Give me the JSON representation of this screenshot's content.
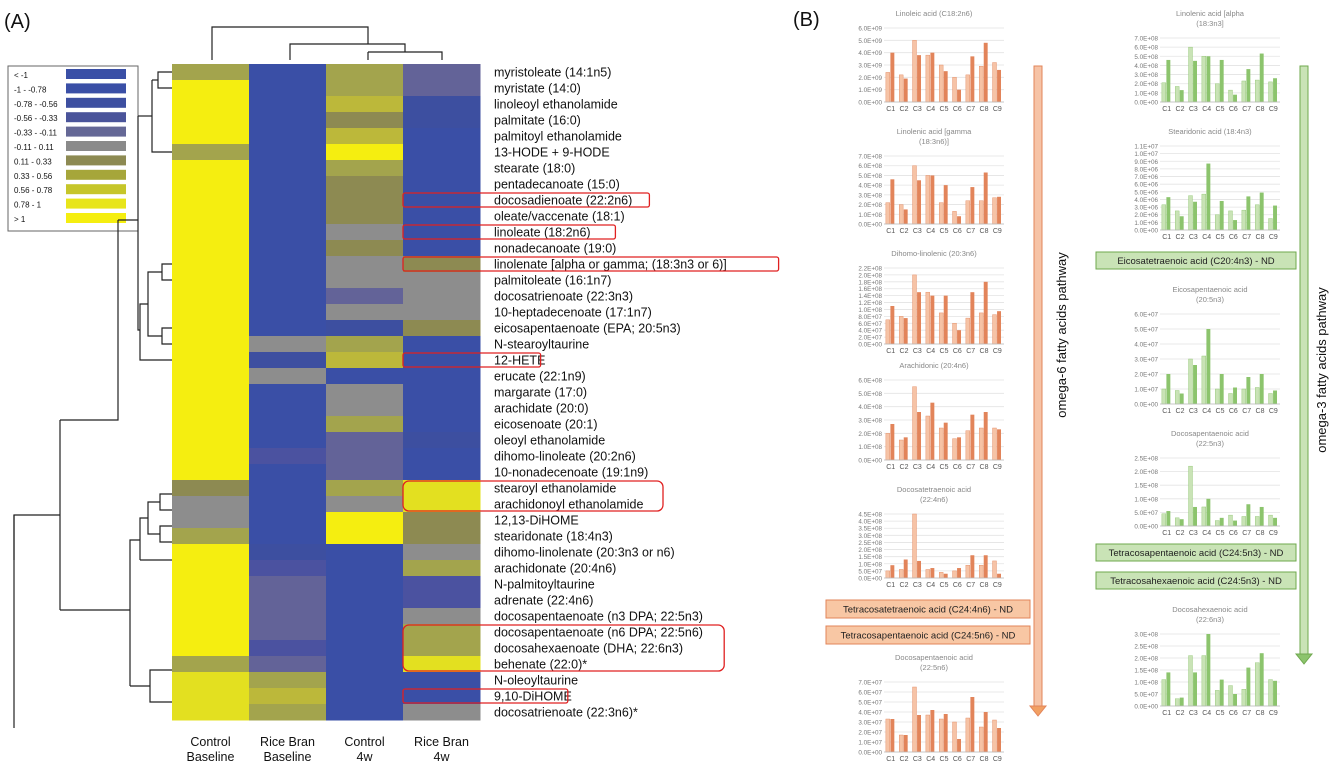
{
  "panel_labels": {
    "a": "(A)",
    "b": "(B)"
  },
  "legend": [
    {
      "label": "< -1",
      "color": "#3a4fa6"
    },
    {
      "label": "-1 - -0.78",
      "color": "#3a4fa6"
    },
    {
      "label": "-0.78 - -0.56",
      "color": "#3d4fa0"
    },
    {
      "label": "-0.56 - -0.33",
      "color": "#4a549a"
    },
    {
      "label": "-0.33 - -0.11",
      "color": "#656896"
    },
    {
      "label": "-0.11 - 0.11",
      "color": "#8a8a8a"
    },
    {
      "label": "0.11 - 0.33",
      "color": "#8d8a52"
    },
    {
      "label": "0.33 - 0.56",
      "color": "#a6a63a"
    },
    {
      "label": "0.56 - 0.78",
      "color": "#c6c62a"
    },
    {
      "label": "0.78 - 1",
      "color": "#e8e51a"
    },
    {
      "label": "> 1",
      "color": "#f5ee10"
    }
  ],
  "heatmap": {
    "columns": [
      "Control Baseline",
      "Rice Bran Baseline",
      "Control 4w",
      "Rice Bran 4w"
    ],
    "colors": {
      "Y": "#f5ee10",
      "y": "#e3e020",
      "O": "#bcb83a",
      "o": "#a3a44d",
      "G": "#8d8a52",
      "R": "#8d8d8d",
      "P": "#636398",
      "p": "#4b52a0",
      "B": "#3a4fa6",
      "b": "#3d4fa0"
    },
    "rows": [
      {
        "label": "myristoleate (14:1n5)",
        "cells": "oBoP"
      },
      {
        "label": "myristate (14:0)",
        "cells": "YBoP"
      },
      {
        "label": "linoleoyl ethanolamide",
        "cells": "YBOb"
      },
      {
        "label": "palmitate (16:0)",
        "cells": "YBGb"
      },
      {
        "label": "palmitoyl ethanolamide",
        "cells": "YBOB"
      },
      {
        "label": "13-HODE + 9-HODE",
        "cells": "oBYB"
      },
      {
        "label": "stearate (18:0)",
        "cells": "YBoB"
      },
      {
        "label": "pentadecanoate (15:0)",
        "cells": "YBGB"
      },
      {
        "label": "docosadienoate (22:2n6)",
        "cells": "YBGB"
      },
      {
        "label": "oleate/vaccenate (18:1)",
        "cells": "YBGB"
      },
      {
        "label": "linoleate (18:2n6)",
        "cells": "YBRB"
      },
      {
        "label": "nonadecanoate (19:0)",
        "cells": "YBGB"
      },
      {
        "label": "linolenate [alpha or gamma; (18:3n3 or 6)]",
        "cells": "YBRG"
      },
      {
        "label": "palmitoleate (16:1n7)",
        "cells": "YBRR"
      },
      {
        "label": "docosatrienoate (22:3n3)",
        "cells": "YBPR"
      },
      {
        "label": "10-heptadecenoate (17:1n7)",
        "cells": "YBRR"
      },
      {
        "label": "eicosapentaenoate (EPA; 20:5n3)",
        "cells": "YBbG"
      },
      {
        "label": "N-stearoyltaurine",
        "cells": "YRoB"
      },
      {
        "label": "12-HETE",
        "cells": "YbOB"
      },
      {
        "label": "erucate (22:1n9)",
        "cells": "YRBB"
      },
      {
        "label": "margarate (17:0)",
        "cells": "YBRB"
      },
      {
        "label": "arachidate (20:0)",
        "cells": "YBRB"
      },
      {
        "label": "eicosenoate (20:1)",
        "cells": "YBoB"
      },
      {
        "label": "oleoyl ethanolamide",
        "cells": "YBPb"
      },
      {
        "label": "dihomo-linoleate (20:2n6)",
        "cells": "YpPB"
      },
      {
        "label": "10-nonadecenoate (19:1n9)",
        "cells": "YBPB"
      },
      {
        "label": "stearoyl ethanolamide",
        "cells": "GBoy"
      },
      {
        "label": "arachidonoyl ethanolamide",
        "cells": "RBRy"
      },
      {
        "label": "12,13-DiHOME",
        "cells": "RBYG"
      },
      {
        "label": "stearidonate (18:4n3)",
        "cells": "oBYG"
      },
      {
        "label": "dihomo-linolenate (20:3n3 or n6)",
        "cells": "YbBR"
      },
      {
        "label": "arachidonate (20:4n6)",
        "cells": "YpBo"
      },
      {
        "label": "N-palmitoyltaurine",
        "cells": "YPBp"
      },
      {
        "label": "adrenate (22:4n6)",
        "cells": "YPBp"
      },
      {
        "label": "docosapentaenoate (n3 DPA; 22:5n3)",
        "cells": "YPBR"
      },
      {
        "label": "docosapentaenoate (n6 DPA; 22:5n6)",
        "cells": "YPBo"
      },
      {
        "label": "docosahexaenoate (DHA; 22:6n3)",
        "cells": "YpBo"
      },
      {
        "label": "behenate (22:0)*",
        "cells": "oPBy"
      },
      {
        "label": "N-oleoyltaurine",
        "cells": "yoBB"
      },
      {
        "label": "9,10-DiHOME",
        "cells": "yOBB"
      },
      {
        "label": "docosatrienoate (22:3n6)*",
        "cells": "yoBR"
      }
    ],
    "boxed": [
      [
        8
      ],
      [
        10
      ],
      [
        12
      ],
      [
        18
      ],
      [
        26,
        27
      ],
      [
        35,
        36,
        37
      ],
      [
        39
      ]
    ]
  },
  "chart_data": [
    {
      "type": "bar",
      "title": "Linoleic acid (C18:2n6)",
      "categories": [
        "C1",
        "C2",
        "C3",
        "C4",
        "C5",
        "C6",
        "C7",
        "C8",
        "C9"
      ],
      "yticks": [
        "0.0E+00",
        "1.0E+09",
        "2.0E+09",
        "3.0E+09",
        "4.0E+09",
        "5.0E+09",
        "6.0E+09"
      ],
      "ylim": [
        0,
        6000000000
      ],
      "series": [
        {
          "values": [
            2400000000,
            2200000000,
            5000000000,
            3800000000,
            3000000000,
            2000000000,
            2200000000,
            2900000000,
            3200000000
          ]
        },
        {
          "values": [
            4000000000,
            1900000000,
            3800000000,
            4000000000,
            2500000000,
            1000000000,
            3700000000,
            4800000000,
            2600000000
          ]
        }
      ]
    },
    {
      "type": "bar",
      "title": "Linolenic acid [gamma (18:3n6)]",
      "categories": [
        "C1",
        "C2",
        "C3",
        "C4",
        "C5",
        "C6",
        "C7",
        "C8",
        "C9"
      ],
      "yticks": [
        "0.0E+00",
        "1.0E+08",
        "2.0E+08",
        "3.0E+08",
        "4.0E+08",
        "5.0E+08",
        "6.0E+08",
        "7.0E+08"
      ],
      "ylim": [
        0,
        700000000
      ],
      "series": [
        {
          "values": [
            220000000,
            200000000,
            600000000,
            500000000,
            220000000,
            130000000,
            240000000,
            240000000,
            270000000
          ]
        },
        {
          "values": [
            460000000,
            150000000,
            450000000,
            500000000,
            400000000,
            80000000,
            380000000,
            530000000,
            280000000
          ]
        }
      ]
    },
    {
      "type": "bar",
      "title": "Dihomo-linolenic (20:3n6)",
      "categories": [
        "C1",
        "C2",
        "C3",
        "C4",
        "C5",
        "C6",
        "C7",
        "C8",
        "C9"
      ],
      "yticks": [
        "0.0E+00",
        "2.0E+07",
        "4.0E+07",
        "6.0E+07",
        "8.0E+07",
        "1.0E+08",
        "1.2E+08",
        "1.4E+08",
        "1.6E+08",
        "1.8E+08",
        "2.0E+08",
        "2.2E+08"
      ],
      "ylim": [
        0,
        220000000
      ],
      "series": [
        {
          "values": [
            70000000,
            80000000,
            200000000,
            150000000,
            90000000,
            60000000,
            75000000,
            90000000,
            85000000
          ]
        },
        {
          "values": [
            110000000,
            75000000,
            150000000,
            140000000,
            140000000,
            40000000,
            150000000,
            180000000,
            95000000
          ]
        }
      ]
    },
    {
      "type": "bar",
      "title": "Arachidonic (20:4n6)",
      "categories": [
        "C1",
        "C2",
        "C3",
        "C4",
        "C5",
        "C6",
        "C7",
        "C8",
        "C9"
      ],
      "yticks": [
        "0.0E+00",
        "1.0E+08",
        "2.0E+08",
        "3.0E+08",
        "4.0E+08",
        "5.0E+08",
        "6.0E+08"
      ],
      "ylim": [
        0,
        600000000
      ],
      "series": [
        {
          "values": [
            200000000,
            150000000,
            550000000,
            330000000,
            240000000,
            160000000,
            220000000,
            240000000,
            240000000
          ]
        },
        {
          "values": [
            270000000,
            170000000,
            360000000,
            430000000,
            280000000,
            170000000,
            340000000,
            360000000,
            230000000
          ]
        }
      ]
    },
    {
      "type": "bar",
      "title": "Docosatetraenoic acid (22:4n6)",
      "categories": [
        "C1",
        "C2",
        "C3",
        "C4",
        "C5",
        "C6",
        "C7",
        "C8",
        "C9"
      ],
      "yticks": [
        "0.0E+00",
        "5.0E+07",
        "1.0E+08",
        "1.5E+08",
        "2.0E+08",
        "2.5E+08",
        "3.0E+08",
        "3.5E+08",
        "4.0E+08",
        "4.5E+08"
      ],
      "ylim": [
        0,
        450000000
      ],
      "series": [
        {
          "values": [
            50000000,
            60000000,
            450000000,
            60000000,
            40000000,
            50000000,
            90000000,
            90000000,
            120000000
          ]
        },
        {
          "values": [
            90000000,
            130000000,
            120000000,
            70000000,
            30000000,
            70000000,
            160000000,
            160000000,
            30000000
          ]
        }
      ]
    },
    {
      "type": "bar",
      "title": "Docosapentaenoic acid (22:5n6)",
      "categories": [
        "C1",
        "C2",
        "C3",
        "C4",
        "C5",
        "C6",
        "C7",
        "C8",
        "C9"
      ],
      "yticks": [
        "0.0E+00",
        "1.0E+07",
        "2.0E+07",
        "3.0E+07",
        "4.0E+07",
        "5.0E+07",
        "6.0E+07",
        "7.0E+07"
      ],
      "ylim": [
        0,
        70000000
      ],
      "series": [
        {
          "values": [
            33000000,
            17000000,
            65000000,
            37000000,
            33000000,
            30000000,
            34000000,
            25000000,
            32000000
          ]
        },
        {
          "values": [
            33000000,
            17000000,
            37000000,
            42000000,
            38000000,
            13000000,
            55000000,
            40000000,
            24000000
          ]
        }
      ]
    },
    {
      "type": "bar",
      "title": "Linolenic acid [alpha (18:3n3]",
      "categories": [
        "C1",
        "C2",
        "C3",
        "C4",
        "C5",
        "C6",
        "C7",
        "C8",
        "C9"
      ],
      "yticks": [
        "0.0E+00",
        "1.0E+08",
        "2.0E+08",
        "3.0E+08",
        "4.0E+08",
        "5.0E+08",
        "6.0E+08",
        "7.0E+08"
      ],
      "ylim": [
        0,
        700000000
      ],
      "series": [
        {
          "values": [
            210000000,
            170000000,
            600000000,
            500000000,
            200000000,
            130000000,
            230000000,
            240000000,
            220000000
          ]
        },
        {
          "values": [
            460000000,
            130000000,
            450000000,
            500000000,
            460000000,
            80000000,
            360000000,
            530000000,
            260000000
          ]
        }
      ]
    },
    {
      "type": "bar",
      "title": "Stearidonic acid (18:4n3)",
      "categories": [
        "C1",
        "C2",
        "C3",
        "C4",
        "C5",
        "C6",
        "C7",
        "C8",
        "C9"
      ],
      "yticks": [
        "0.0E+00",
        "1.0E+06",
        "2.0E+06",
        "3.0E+06",
        "4.0E+06",
        "5.0E+06",
        "6.0E+06",
        "7.0E+06",
        "8.0E+06",
        "9.0E+06",
        "1.0E+07",
        "1.1E+07"
      ],
      "ylim": [
        0,
        11000000
      ],
      "series": [
        {
          "values": [
            3300000,
            2500000,
            4500000,
            4700000,
            2000000,
            2500000,
            2600000,
            3300000,
            1500000
          ]
        },
        {
          "values": [
            4300000,
            1800000,
            3700000,
            8700000,
            3800000,
            1300000,
            4400000,
            4900000,
            3200000
          ]
        }
      ]
    },
    {
      "type": "bar",
      "title": "Eicosapentaenoic acid (20:5n3)",
      "categories": [
        "C1",
        "C2",
        "C3",
        "C4",
        "C5",
        "C6",
        "C7",
        "C8",
        "C9"
      ],
      "yticks": [
        "0.0E+00",
        "1.0E+07",
        "2.0E+07",
        "3.0E+07",
        "4.0E+07",
        "5.0E+07",
        "6.0E+07"
      ],
      "ylim": [
        0,
        60000000
      ],
      "series": [
        {
          "values": [
            10000000,
            9000000,
            30000000,
            32000000,
            10000000,
            7000000,
            10000000,
            11000000,
            7000000
          ]
        },
        {
          "values": [
            20000000,
            7000000,
            26000000,
            50000000,
            20000000,
            11000000,
            18000000,
            20000000,
            9000000
          ]
        }
      ]
    },
    {
      "type": "bar",
      "title": "Docosapentaenoic acid (22:5n3)",
      "categories": [
        "C1",
        "C2",
        "C3",
        "C4",
        "C5",
        "C6",
        "C7",
        "C8",
        "C9"
      ],
      "yticks": [
        "0.0E+00",
        "5.0E+07",
        "1.0E+08",
        "1.5E+08",
        "2.0E+08",
        "2.5E+08"
      ],
      "ylim": [
        0,
        250000000
      ],
      "series": [
        {
          "values": [
            45000000,
            30000000,
            220000000,
            70000000,
            20000000,
            40000000,
            35000000,
            35000000,
            40000000
          ]
        },
        {
          "values": [
            55000000,
            25000000,
            70000000,
            100000000,
            30000000,
            20000000,
            80000000,
            70000000,
            30000000
          ]
        }
      ]
    },
    {
      "type": "bar",
      "title": "Docosahexaenoic acid (22:6n3)",
      "categories": [
        "C1",
        "C2",
        "C3",
        "C4",
        "C5",
        "C6",
        "C7",
        "C8",
        "C9"
      ],
      "yticks": [
        "0.0E+00",
        "5.0E+07",
        "1.0E+08",
        "1.5E+08",
        "2.0E+08",
        "2.5E+08",
        "3.0E+08"
      ],
      "ylim": [
        0,
        300000000
      ],
      "series": [
        {
          "values": [
            110000000,
            30000000,
            210000000,
            210000000,
            65000000,
            85000000,
            70000000,
            180000000,
            110000000
          ]
        },
        {
          "values": [
            140000000,
            35000000,
            140000000,
            300000000,
            110000000,
            50000000,
            160000000,
            220000000,
            105000000
          ]
        }
      ]
    }
  ],
  "notes_n6": [
    "Tetracosatetraenoic acid (C24:4n6) - ND",
    "Tetracosapentaenoic acid (C24:5n6) - ND"
  ],
  "notes_n3": [
    "Eicosatetraenoic acid (C20:4n3) - ND",
    "Tetracosapentaenoic acid (C24:5n3) - ND",
    "Tetracosahexaenoic acid (C24:5n3) - ND"
  ],
  "pathway_labels": {
    "n6": "omega-6 fatty acids pathway",
    "n3": "omega-3 fatty acids pathway"
  },
  "colors": {
    "n6_light": "#f6c3a6",
    "n6_dark": "#e2845a",
    "n3_light": "#c9e3b6",
    "n3_dark": "#8cc46d",
    "n6_arrow": "#f2a063",
    "n3_arrow": "#8cc46d",
    "box": "#e02020"
  }
}
